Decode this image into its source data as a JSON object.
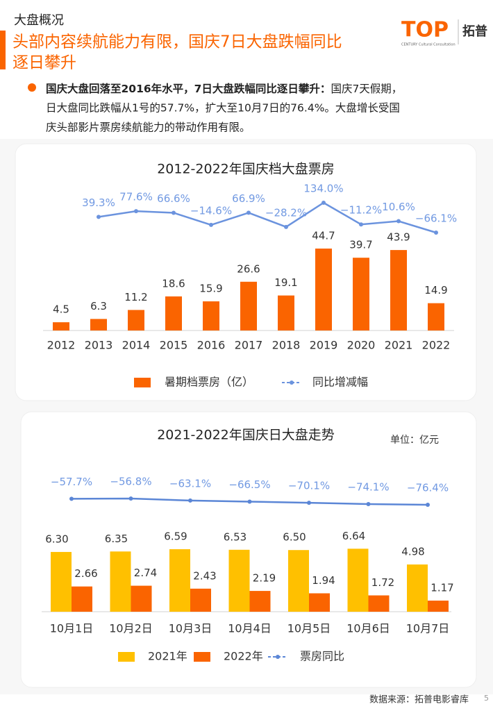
{
  "header": {
    "section": "大盘概况",
    "title_lines": [
      "头部内容续航能力有限，国庆7日大盘跌幅同比",
      "逐日攀升"
    ],
    "logo": {
      "mark": "TOP",
      "name": "拓普",
      "tagline": "CENTURY Cultural Consultation"
    }
  },
  "bullet": {
    "heading": "国庆大盘回落至2016年水平，7日大盘跌幅同比逐日攀升：",
    "lines": [
      "国庆7天假期，",
      "日大盘同比跌幅从1号的57.7%，扩大至10月7日的76.4%。大盘增长受国",
      "庆头部影片票房续航能力的带动作用有限。"
    ]
  },
  "chart_data": [
    {
      "type": "combo",
      "title": "2012-2022年国庆档大盘票房",
      "categories": [
        "2012",
        "2013",
        "2014",
        "2015",
        "2016",
        "2017",
        "2018",
        "2019",
        "2020",
        "2021",
        "2022"
      ],
      "series": [
        {
          "name": "暑期档票房（亿）",
          "type": "bar",
          "color": "#fa6400",
          "values": [
            4.5,
            6.3,
            11.2,
            18.6,
            15.9,
            26.6,
            19.1,
            44.7,
            39.7,
            43.9,
            14.9
          ]
        },
        {
          "name": "同比增减幅",
          "type": "line",
          "color": "#6b93de",
          "values": [
            null,
            39.3,
            77.6,
            66.6,
            -14.6,
            66.9,
            -28.2,
            134.0,
            -11.2,
            10.6,
            -66.1
          ],
          "value_labels": [
            null,
            "39.3%",
            "77.6%",
            "66.6%",
            "−14.6%",
            "66.9%",
            "−28.2%",
            "134.0%",
            "−11.2%",
            "10.6%",
            "−66.1%"
          ]
        }
      ]
    },
    {
      "type": "combo",
      "title": "2021-2022年国庆日大盘走势",
      "unit": "单位：亿元",
      "categories": [
        "10月1日",
        "10月2日",
        "10月3日",
        "10月4日",
        "10月5日",
        "10月6日",
        "10月7日"
      ],
      "series": [
        {
          "name": "2021年",
          "type": "bar",
          "color": "#ffc000",
          "values": [
            6.3,
            6.35,
            6.59,
            6.53,
            6.5,
            6.64,
            4.98
          ],
          "value_labels": [
            "6.30",
            "6.35",
            "6.59",
            "6.53",
            "6.50",
            "6.64",
            "4.98"
          ]
        },
        {
          "name": "2022年",
          "type": "bar",
          "color": "#fa6400",
          "values": [
            2.66,
            2.74,
            2.43,
            2.19,
            1.94,
            1.72,
            1.17
          ]
        },
        {
          "name": "票房同比",
          "type": "line",
          "color": "#5b86d6",
          "values": [
            -57.7,
            -56.8,
            -63.1,
            -66.5,
            -70.1,
            -74.1,
            -76.4
          ],
          "value_labels": [
            "−57.7%",
            "−56.8%",
            "−63.1%",
            "−66.5%",
            "−70.1%",
            "−74.1%",
            "−76.4%"
          ]
        }
      ]
    }
  ],
  "footer": {
    "source": "数据来源：拓普电影睿库",
    "page": "5"
  }
}
